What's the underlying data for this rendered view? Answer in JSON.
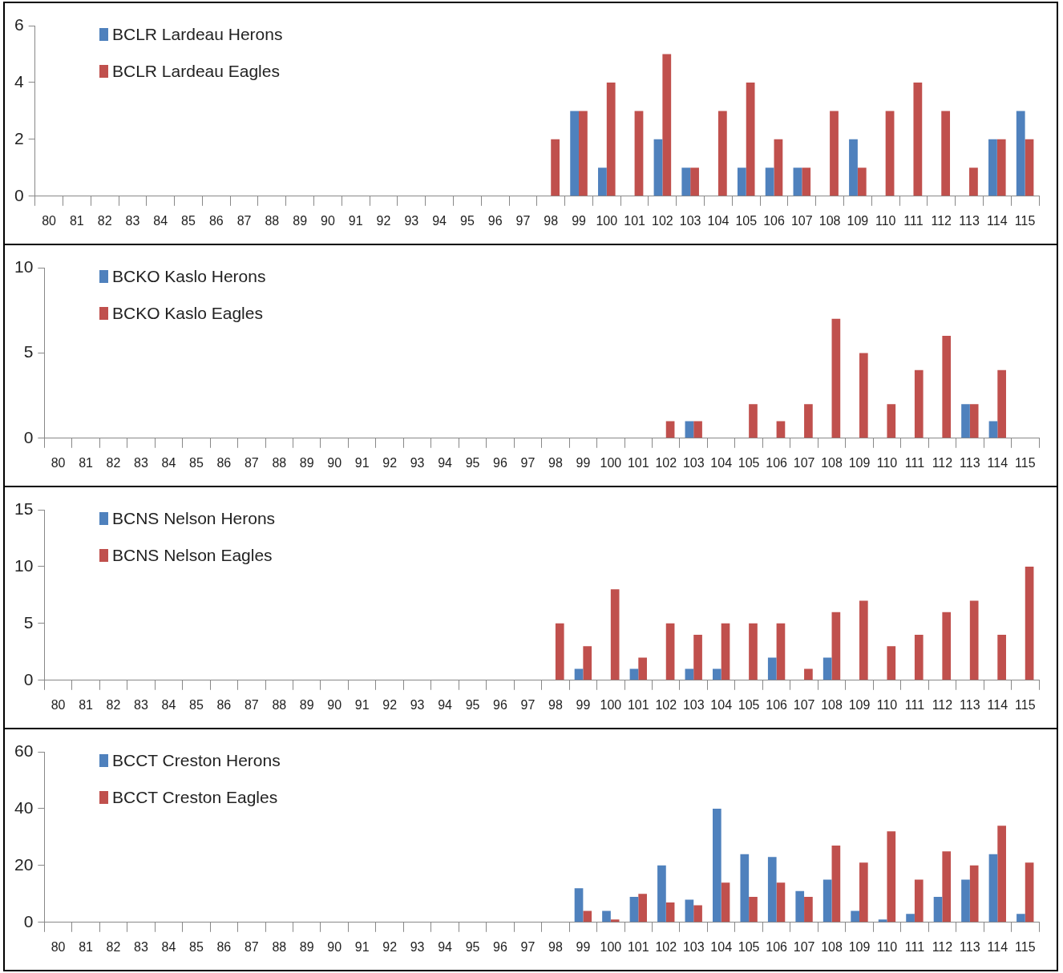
{
  "chart_data": [
    {
      "type": "bar",
      "categories": [
        "80",
        "81",
        "82",
        "83",
        "84",
        "85",
        "86",
        "87",
        "88",
        "89",
        "90",
        "91",
        "92",
        "93",
        "94",
        "95",
        "96",
        "97",
        "98",
        "99",
        "100",
        "101",
        "102",
        "103",
        "104",
        "105",
        "106",
        "107",
        "108",
        "109",
        "110",
        "111",
        "112",
        "113",
        "114",
        "115"
      ],
      "series": [
        {
          "name": "BCLR Lardeau Herons",
          "color": "#4f81bd",
          "values": [
            0,
            0,
            0,
            0,
            0,
            0,
            0,
            0,
            0,
            0,
            0,
            0,
            0,
            0,
            0,
            0,
            0,
            0,
            0,
            3,
            1,
            0,
            2,
            1,
            0,
            1,
            1,
            1,
            0,
            2,
            0,
            0,
            0,
            0,
            2,
            3
          ]
        },
        {
          "name": "BCLR Lardeau Eagles",
          "color": "#c0504d",
          "values": [
            0,
            0,
            0,
            0,
            0,
            0,
            0,
            0,
            0,
            0,
            0,
            0,
            0,
            0,
            0,
            0,
            0,
            0,
            2,
            3,
            4,
            3,
            5,
            1,
            3,
            4,
            2,
            1,
            3,
            1,
            3,
            4,
            3,
            1,
            2,
            2
          ]
        }
      ],
      "ylim": [
        0,
        6
      ],
      "yticks": [
        0,
        2,
        4,
        6
      ],
      "legend": "top left"
    },
    {
      "type": "bar",
      "categories": [
        "80",
        "81",
        "82",
        "83",
        "84",
        "85",
        "86",
        "87",
        "88",
        "89",
        "90",
        "91",
        "92",
        "93",
        "94",
        "95",
        "96",
        "97",
        "98",
        "99",
        "100",
        "101",
        "102",
        "103",
        "104",
        "105",
        "106",
        "107",
        "108",
        "109",
        "110",
        "111",
        "112",
        "113",
        "114",
        "115"
      ],
      "series": [
        {
          "name": "BCKO Kaslo Herons",
          "color": "#4f81bd",
          "values": [
            0,
            0,
            0,
            0,
            0,
            0,
            0,
            0,
            0,
            0,
            0,
            0,
            0,
            0,
            0,
            0,
            0,
            0,
            0,
            0,
            0,
            0,
            0,
            1,
            0,
            0,
            0,
            0,
            0,
            0,
            0,
            0,
            0,
            2,
            1,
            0
          ]
        },
        {
          "name": "BCKO Kaslo Eagles",
          "color": "#c0504d",
          "values": [
            0,
            0,
            0,
            0,
            0,
            0,
            0,
            0,
            0,
            0,
            0,
            0,
            0,
            0,
            0,
            0,
            0,
            0,
            0,
            0,
            0,
            0,
            1,
            1,
            0,
            2,
            1,
            2,
            7,
            5,
            2,
            4,
            6,
            2,
            4,
            0
          ]
        }
      ],
      "ylim": [
        0,
        10
      ],
      "yticks": [
        0,
        5,
        10
      ],
      "legend": "top left"
    },
    {
      "type": "bar",
      "categories": [
        "80",
        "81",
        "82",
        "83",
        "84",
        "85",
        "86",
        "87",
        "88",
        "89",
        "90",
        "91",
        "92",
        "93",
        "94",
        "95",
        "96",
        "97",
        "98",
        "99",
        "100",
        "101",
        "102",
        "103",
        "104",
        "105",
        "106",
        "107",
        "108",
        "109",
        "110",
        "111",
        "112",
        "113",
        "114",
        "115"
      ],
      "series": [
        {
          "name": "BCNS Nelson Herons",
          "color": "#4f81bd",
          "values": [
            0,
            0,
            0,
            0,
            0,
            0,
            0,
            0,
            0,
            0,
            0,
            0,
            0,
            0,
            0,
            0,
            0,
            0,
            0,
            1,
            0,
            1,
            0,
            1,
            1,
            0,
            2,
            0,
            2,
            0,
            0,
            0,
            0,
            0,
            0,
            0
          ]
        },
        {
          "name": "BCNS Nelson Eagles",
          "color": "#c0504d",
          "values": [
            0,
            0,
            0,
            0,
            0,
            0,
            0,
            0,
            0,
            0,
            0,
            0,
            0,
            0,
            0,
            0,
            0,
            0,
            5,
            3,
            8,
            2,
            5,
            4,
            5,
            5,
            5,
            1,
            6,
            7,
            3,
            4,
            6,
            7,
            4,
            10
          ]
        }
      ],
      "ylim": [
        0,
        15
      ],
      "yticks": [
        0,
        5,
        10,
        15
      ],
      "legend": "top left"
    },
    {
      "type": "bar",
      "categories": [
        "80",
        "81",
        "82",
        "83",
        "84",
        "85",
        "86",
        "87",
        "88",
        "89",
        "90",
        "91",
        "92",
        "93",
        "94",
        "95",
        "96",
        "97",
        "98",
        "99",
        "100",
        "101",
        "102",
        "103",
        "104",
        "105",
        "106",
        "107",
        "108",
        "109",
        "110",
        "111",
        "112",
        "113",
        "114",
        "115"
      ],
      "series": [
        {
          "name": "BCCT Creston Herons",
          "color": "#4f81bd",
          "values": [
            0,
            0,
            0,
            0,
            0,
            0,
            0,
            0,
            0,
            0,
            0,
            0,
            0,
            0,
            0,
            0,
            0,
            0,
            0,
            12,
            4,
            9,
            20,
            8,
            40,
            24,
            23,
            11,
            15,
            4,
            1,
            3,
            9,
            15,
            24,
            3
          ]
        },
        {
          "name": "BCCT Creston Eagles",
          "color": "#c0504d",
          "values": [
            0,
            0,
            0,
            0,
            0,
            0,
            0,
            0,
            0,
            0,
            0,
            0,
            0,
            0,
            0,
            0,
            0,
            0,
            0,
            4,
            1,
            10,
            7,
            6,
            14,
            9,
            14,
            9,
            27,
            21,
            32,
            15,
            25,
            20,
            34,
            21
          ]
        }
      ],
      "ylim": [
        0,
        60
      ],
      "yticks": [
        0,
        20,
        40,
        60
      ],
      "legend": "top left"
    }
  ]
}
